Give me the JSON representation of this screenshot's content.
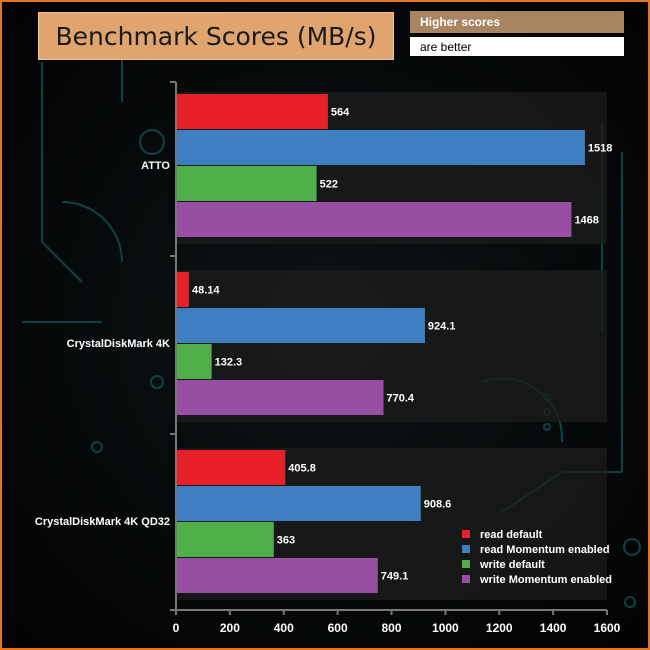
{
  "header": {
    "title": "Benchmark Scores (MB/s)",
    "note_line1": "Higher scores",
    "note_line2": "are better"
  },
  "chart_data": {
    "type": "bar",
    "orientation": "horizontal",
    "categories": [
      "ATTO",
      "CrystalDiskMark 4K",
      "CrystalDiskMark 4K QD32"
    ],
    "series": [
      {
        "name": "read default",
        "color": "#e8202a",
        "values": [
          564,
          48.14,
          405.8
        ],
        "labels": [
          "564",
          "48.14",
          "405.8"
        ]
      },
      {
        "name": "read Momentum enabled",
        "color": "#3d7fc1",
        "values": [
          1518,
          924.1,
          908.6
        ],
        "labels": [
          "1518",
          "924.1",
          "908.6"
        ]
      },
      {
        "name": "write default",
        "color": "#4fb04a",
        "values": [
          522,
          132.3,
          363
        ],
        "labels": [
          "522",
          "132.3",
          "363"
        ]
      },
      {
        "name": "write Momentum enabled",
        "color": "#984ea3",
        "values": [
          1468,
          770.4,
          749.1
        ],
        "labels": [
          "1468",
          "770.4",
          "749.1"
        ]
      }
    ],
    "xlim": [
      0,
      1600
    ],
    "xticks": [
      0,
      200,
      400,
      600,
      800,
      1000,
      1200,
      1400,
      1600
    ],
    "grid": false,
    "legend_position": "bottom-right"
  }
}
